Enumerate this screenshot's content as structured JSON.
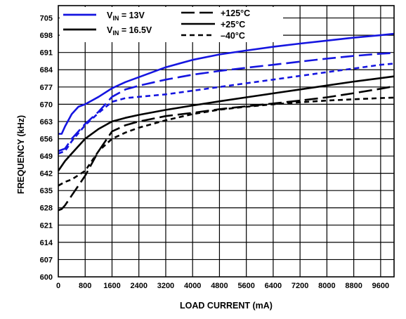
{
  "chart_data": {
    "type": "line",
    "title": "",
    "xlabel": "LOAD CURRENT (mA)",
    "ylabel": "FREQUENCY (kHz)",
    "xlim": [
      0,
      10000
    ],
    "ylim": [
      600,
      710
    ],
    "x_ticks": [
      0,
      800,
      1600,
      2400,
      3200,
      4000,
      4800,
      5600,
      6400,
      7200,
      8000,
      8800,
      9600
    ],
    "x_tick_labels": [
      "0",
      "800",
      "1600",
      "2400",
      "3200",
      "4000",
      "4800",
      "5600",
      "6400",
      "7200",
      "8000",
      "8800",
      "9600"
    ],
    "y_ticks": [
      600,
      607,
      614,
      621,
      628,
      635,
      642,
      649,
      656,
      663,
      670,
      677,
      684,
      691,
      698,
      705
    ],
    "y_tick_labels": [
      "600",
      "607",
      "614",
      "621",
      "628",
      "635",
      "642",
      "649",
      "656",
      "663",
      "670",
      "677",
      "684",
      "691",
      "698",
      "705"
    ],
    "grid": true,
    "legend": {
      "placement": "top-left",
      "color_entries": [
        {
          "sub_prefix": "V",
          "sub": "IN",
          "suffix": " = 13V",
          "color": "#1515e0"
        },
        {
          "sub_prefix": "V",
          "sub": "IN",
          "suffix": " = 16.5V",
          "color": "#000000"
        }
      ],
      "style_entries": [
        {
          "label": "+125°C",
          "dash": "long-dash"
        },
        {
          "label": "+25°C",
          "dash": "solid"
        },
        {
          "label": "–40°C",
          "dash": "short-dash"
        }
      ]
    },
    "series": [
      {
        "vin": "13V",
        "temp": "+25°C",
        "color": "#1515e0",
        "dash": "solid",
        "x": [
          0,
          100,
          200,
          400,
          600,
          800,
          1200,
          1600,
          2000,
          2400,
          3200,
          4000,
          4800,
          5600,
          6400,
          7200,
          8000,
          8800,
          9600,
          10000
        ],
        "y": [
          658,
          658,
          661,
          666,
          669,
          670,
          673,
          676.5,
          679,
          681,
          685,
          688,
          690.2,
          691.8,
          693.3,
          694.6,
          695.8,
          697,
          698,
          698.6
        ]
      },
      {
        "vin": "13V",
        "temp": "+125°C",
        "color": "#1515e0",
        "dash": "long-dash",
        "x": [
          0,
          200,
          400,
          800,
          1200,
          1600,
          2000,
          2400,
          3200,
          4000,
          4800,
          5600,
          6400,
          7200,
          8000,
          8800,
          9600,
          10000
        ],
        "y": [
          651,
          652,
          656,
          662,
          667,
          673,
          676,
          677.5,
          680,
          682,
          683.5,
          684.8,
          686,
          687.3,
          688.5,
          689.6,
          690.5,
          690.8
        ]
      },
      {
        "vin": "13V",
        "temp": "–40°C",
        "color": "#1515e0",
        "dash": "short-dash",
        "x": [
          0,
          200,
          400,
          800,
          1200,
          1600,
          2000,
          2400,
          3200,
          4000,
          4800,
          5600,
          6400,
          7200,
          8000,
          8800,
          9600,
          10000
        ],
        "y": [
          650,
          651,
          655,
          661.5,
          666.5,
          671,
          672.5,
          673,
          674,
          675.5,
          677,
          678.5,
          680,
          681.5,
          683,
          684.5,
          686,
          686.5
        ]
      },
      {
        "vin": "16.5V",
        "temp": "+25°C",
        "color": "#000000",
        "dash": "solid",
        "x": [
          0,
          200,
          400,
          800,
          1200,
          1600,
          2000,
          2400,
          3200,
          4000,
          4800,
          5600,
          6400,
          7200,
          8000,
          8800,
          9600,
          10000
        ],
        "y": [
          643,
          647,
          650,
          656,
          660,
          663,
          664.5,
          665.7,
          667.7,
          669.5,
          671.2,
          672.8,
          674.4,
          676,
          677.6,
          679.2,
          680.6,
          681.3
        ]
      },
      {
        "vin": "16.5V",
        "temp": "+125°C",
        "color": "#000000",
        "dash": "long-dash",
        "x": [
          0,
          100,
          200,
          400,
          800,
          1200,
          1600,
          2000,
          2400,
          3200,
          4000,
          4800,
          5600,
          6400,
          7200,
          8000,
          8800,
          9600,
          10000
        ],
        "y": [
          627,
          627.5,
          629,
          633,
          641,
          651,
          659,
          661.5,
          663,
          665.2,
          666.5,
          668,
          669.2,
          670.3,
          671.5,
          672.8,
          674.5,
          676.3,
          677.3
        ]
      },
      {
        "vin": "16.5V",
        "temp": "–40°C",
        "color": "#000000",
        "dash": "short-dash",
        "x": [
          0,
          200,
          400,
          800,
          1200,
          1600,
          2000,
          2400,
          3200,
          4000,
          4800,
          5600,
          6400,
          7200,
          8000,
          8800,
          9600,
          10000
        ],
        "y": [
          637,
          638.5,
          639.5,
          643,
          651,
          656,
          658.5,
          660.5,
          663.5,
          666,
          667.8,
          669,
          670,
          670.8,
          671.5,
          672,
          672.5,
          672.7
        ]
      }
    ]
  }
}
